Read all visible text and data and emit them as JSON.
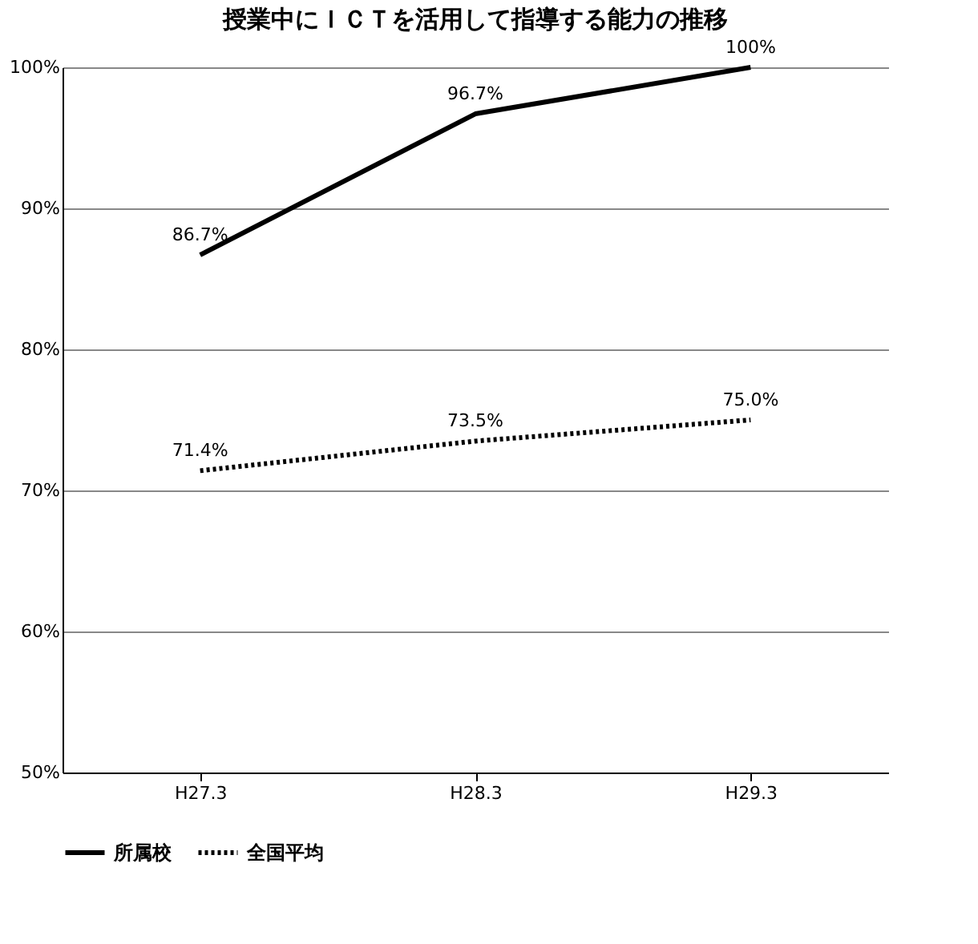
{
  "chart_data": {
    "type": "line",
    "title": "授業中にＩＣＴを活用して指導する能力の推移",
    "categories": [
      "H27.3",
      "H28.3",
      "H29.3"
    ],
    "series": [
      {
        "name": "所属校",
        "color": "#000000",
        "line_style": "solid",
        "values": [
          86.7,
          96.7,
          100
        ],
        "value_labels": [
          "86.7%",
          "96.7%",
          "100%"
        ]
      },
      {
        "name": "全国平均",
        "color": "#000000",
        "line_style": "dotted",
        "values": [
          71.4,
          73.5,
          75.0
        ],
        "value_labels": [
          "71.4%",
          "73.5%",
          "75.0%"
        ]
      }
    ],
    "ylim": [
      50,
      100
    ],
    "yticks": [
      {
        "value": 50,
        "label": "50%"
      },
      {
        "value": 60,
        "label": "60%"
      },
      {
        "value": 70,
        "label": "70%"
      },
      {
        "value": 80,
        "label": "80%"
      },
      {
        "value": 90,
        "label": "90%"
      },
      {
        "value": 100,
        "label": "100%"
      }
    ],
    "grid": "y",
    "legend": "bottom"
  }
}
